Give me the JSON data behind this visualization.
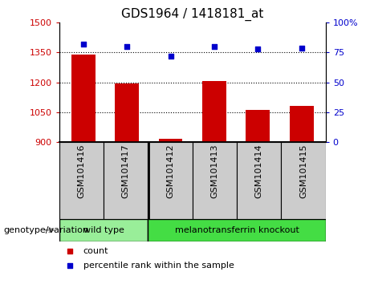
{
  "title": "GDS1964 / 1418181_at",
  "samples": [
    "GSM101416",
    "GSM101417",
    "GSM101412",
    "GSM101413",
    "GSM101414",
    "GSM101415"
  ],
  "counts": [
    1340,
    1195,
    915,
    1207,
    1062,
    1080
  ],
  "percentiles": [
    82,
    80,
    72,
    80,
    78,
    79
  ],
  "ylim_left": [
    900,
    1500
  ],
  "ylim_right": [
    0,
    100
  ],
  "yticks_left": [
    900,
    1050,
    1200,
    1350,
    1500
  ],
  "yticks_right": [
    0,
    25,
    50,
    75,
    100
  ],
  "ytick_labels_right": [
    "0",
    "25",
    "50",
    "75",
    "100%"
  ],
  "bar_color": "#cc0000",
  "scatter_color": "#0000cc",
  "bar_bottom": 900,
  "groups": [
    {
      "label": "wild type",
      "indices": [
        0,
        1
      ],
      "color": "#99ee99"
    },
    {
      "label": "melanotransferrin knockout",
      "indices": [
        2,
        3,
        4,
        5
      ],
      "color": "#44dd44"
    }
  ],
  "group_label_prefix": "genotype/variation",
  "legend_items": [
    {
      "label": "count",
      "color": "#cc0000"
    },
    {
      "label": "percentile rank within the sample",
      "color": "#0000cc"
    }
  ],
  "hlines": [
    1050,
    1200,
    1350
  ],
  "hline_color": "black",
  "title_fontsize": 11,
  "tick_fontsize": 8,
  "label_fontsize": 8,
  "bar_width": 0.55,
  "background_color": "#ffffff",
  "sep_x": 1.5,
  "n_samples": 6,
  "xlim": [
    -0.55,
    5.55
  ]
}
